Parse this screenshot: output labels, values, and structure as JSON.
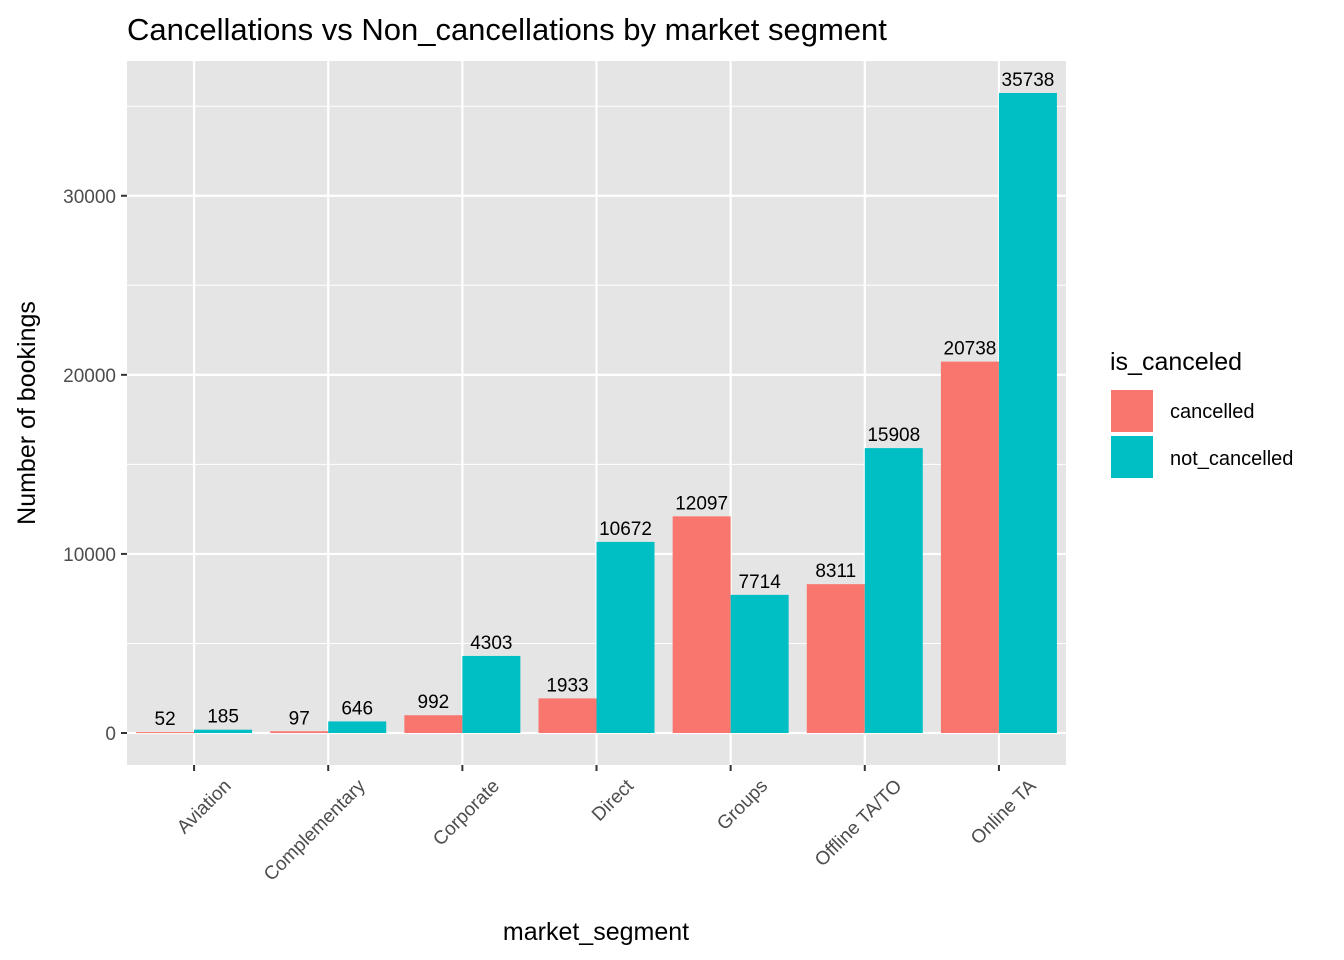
{
  "colors": {
    "panel_bg": "#E5E5E5",
    "grid": "#FFFFFF",
    "cancelled": "#F8766D",
    "not_cancelled": "#00BFC4"
  },
  "chart_data": {
    "type": "bar",
    "title": "Cancellations vs Non_cancellations by market segment",
    "xlabel": "market_segment",
    "ylabel": "Number of bookings",
    "categories": [
      "Aviation",
      "Complementary",
      "Corporate",
      "Direct",
      "Groups",
      "Offline TA/TO",
      "Online TA"
    ],
    "series": [
      {
        "name": "cancelled",
        "values": [
          52,
          97,
          992,
          1933,
          12097,
          8311,
          20738
        ]
      },
      {
        "name": "not_cancelled",
        "values": [
          185,
          646,
          4303,
          10672,
          7714,
          15908,
          35738
        ]
      }
    ],
    "y_ticks": [
      0,
      10000,
      20000,
      30000
    ],
    "ylim": [
      -1787,
      37525
    ],
    "grid": true,
    "legend": {
      "title": "is_canceled",
      "placement": "right"
    }
  }
}
